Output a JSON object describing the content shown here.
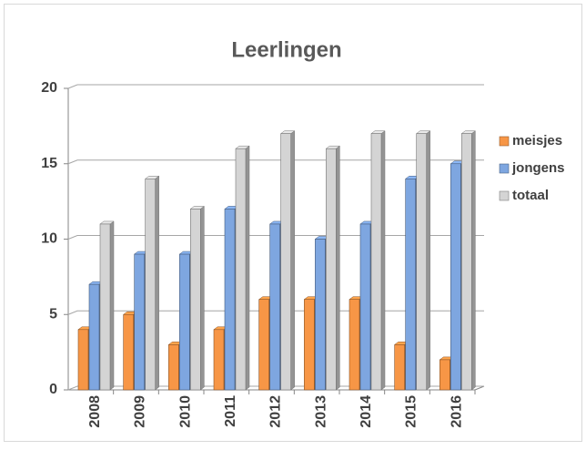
{
  "chart_data": {
    "type": "bar3d",
    "title": "Leerlingen",
    "categories": [
      "2008",
      "2009",
      "2010",
      "2011",
      "2012",
      "2013",
      "2014",
      "2015",
      "2016"
    ],
    "series": [
      {
        "name": "meisjes",
        "color": "#f79646",
        "values": [
          4,
          5,
          3,
          4,
          6,
          6,
          6,
          3,
          2
        ]
      },
      {
        "name": "jongens",
        "color": "#7ea6e0",
        "values": [
          7,
          9,
          9,
          12,
          11,
          10,
          11,
          14,
          15
        ]
      },
      {
        "name": "totaal",
        "color": "#d4d4d4",
        "values": [
          11,
          14,
          12,
          16,
          17,
          16,
          17,
          17,
          17
        ]
      }
    ],
    "ylim": [
      0,
      20
    ],
    "yticks": [
      0,
      5,
      10,
      15,
      20
    ],
    "grid": true,
    "legend": "right"
  }
}
